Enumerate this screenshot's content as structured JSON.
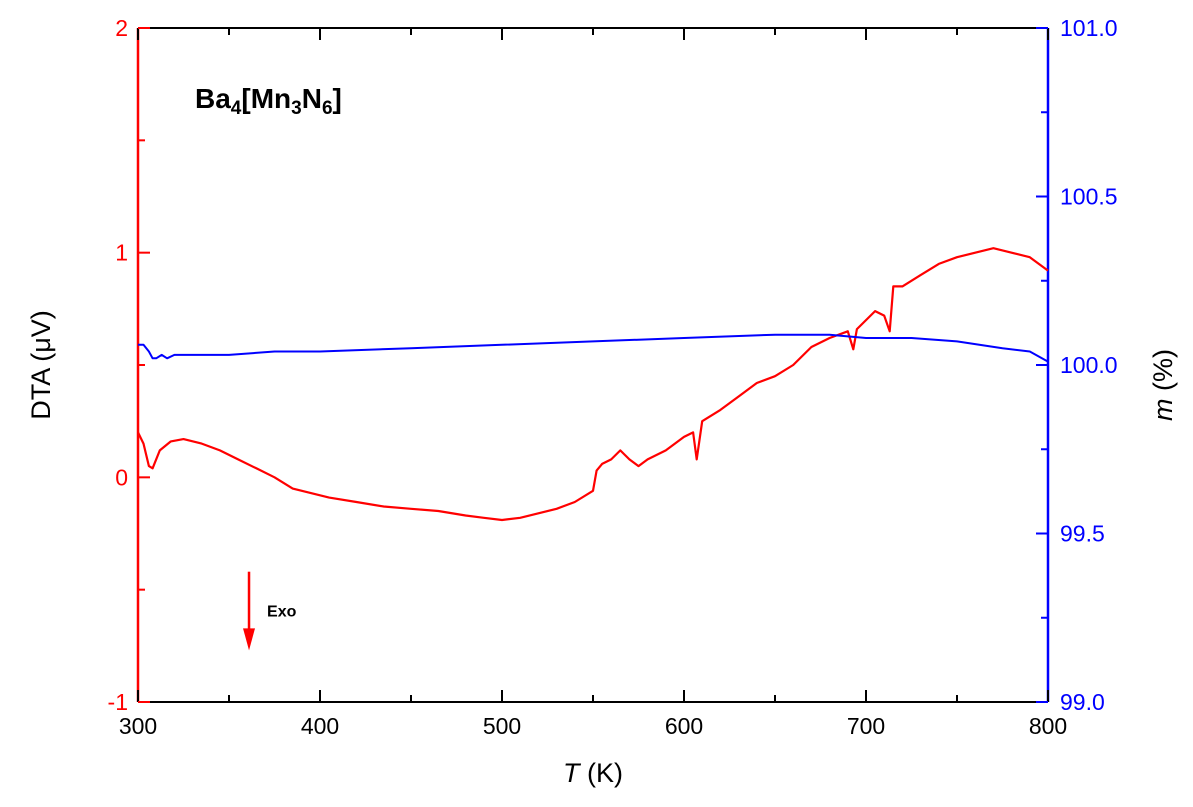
{
  "chart_data": {
    "type": "line",
    "title": "",
    "annotation": {
      "compound_main": "Ba",
      "compound_sub1": "4",
      "compound_mid1": "[Mn",
      "compound_sub2": "3",
      "compound_mid2": "N",
      "compound_sub3": "6",
      "compound_end": "]",
      "arrow_label": "Exo",
      "arrow_x": 361,
      "arrow_y_from": -0.42,
      "arrow_y_to": -0.77
    },
    "x_axis": {
      "label_italic": "T",
      "label_rest": " (K)",
      "range": [
        300,
        800
      ],
      "ticks": [
        "300",
        "400",
        "500",
        "600",
        "700",
        "800"
      ]
    },
    "y_left": {
      "label": "DTA (μV)",
      "range": [
        -1,
        2
      ],
      "ticks": [
        "-1",
        "0",
        "1",
        "2"
      ],
      "color": "#ff0000"
    },
    "y_right": {
      "label_italic": "m",
      "label_rest": " (%)",
      "range": [
        99.0,
        101.0
      ],
      "ticks": [
        "99.0",
        "99.5",
        "100.0",
        "100.5",
        "101.0"
      ],
      "color": "#0000ff"
    },
    "grid": false,
    "series": [
      {
        "axis": "left",
        "color": "#ff0000",
        "x": [
          300,
          303,
          306,
          308,
          312,
          318,
          325,
          335,
          345,
          355,
          365,
          375,
          385,
          395,
          405,
          420,
          435,
          450,
          465,
          480,
          490,
          500,
          510,
          520,
          530,
          540,
          550,
          552,
          555,
          560,
          565,
          570,
          575,
          580,
          590,
          600,
          605,
          607,
          610,
          620,
          630,
          640,
          650,
          660,
          670,
          680,
          690,
          693,
          695,
          700,
          705,
          710,
          713,
          715,
          720,
          730,
          740,
          750,
          760,
          770,
          780,
          790,
          800
        ],
        "values": [
          0.2,
          0.15,
          0.05,
          0.04,
          0.12,
          0.16,
          0.17,
          0.15,
          0.12,
          0.08,
          0.04,
          0.0,
          -0.05,
          -0.07,
          -0.09,
          -0.11,
          -0.13,
          -0.14,
          -0.15,
          -0.17,
          -0.18,
          -0.19,
          -0.18,
          -0.16,
          -0.14,
          -0.11,
          -0.06,
          0.03,
          0.06,
          0.08,
          0.12,
          0.08,
          0.05,
          0.08,
          0.12,
          0.18,
          0.2,
          0.08,
          0.25,
          0.3,
          0.36,
          0.42,
          0.45,
          0.5,
          0.58,
          0.62,
          0.65,
          0.57,
          0.66,
          0.7,
          0.74,
          0.72,
          0.65,
          0.85,
          0.85,
          0.9,
          0.95,
          0.98,
          1.0,
          1.02,
          1.0,
          0.98,
          0.92
        ]
      },
      {
        "axis": "right",
        "color": "#0000ff",
        "x": [
          300,
          303,
          306,
          308,
          310,
          313,
          316,
          320,
          325,
          330,
          340,
          350,
          375,
          400,
          450,
          500,
          550,
          600,
          650,
          680,
          700,
          725,
          750,
          775,
          790,
          800
        ],
        "values": [
          100.06,
          100.06,
          100.04,
          100.02,
          100.02,
          100.03,
          100.02,
          100.03,
          100.03,
          100.03,
          100.03,
          100.03,
          100.04,
          100.04,
          100.05,
          100.06,
          100.07,
          100.08,
          100.09,
          100.09,
          100.08,
          100.08,
          100.07,
          100.05,
          100.04,
          100.01
        ]
      }
    ]
  }
}
